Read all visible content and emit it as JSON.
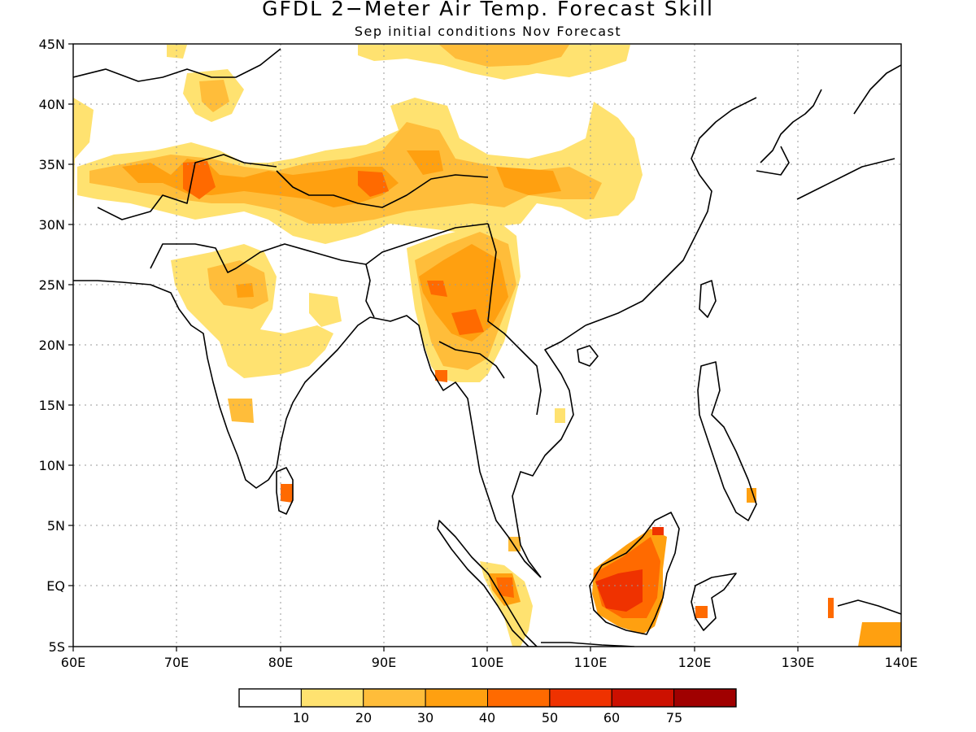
{
  "title": "GFDL 2−Meter Air Temp. Forecast Skill",
  "subtitle": "Sep initial conditions  Nov Forecast",
  "axes": {
    "lat_labels": [
      "45N",
      "40N",
      "35N",
      "30N",
      "25N",
      "20N",
      "15N",
      "10N",
      "5N",
      "EQ",
      "5S"
    ],
    "lon_labels": [
      "60E",
      "70E",
      "80E",
      "90E",
      "100E",
      "110E",
      "120E",
      "130E",
      "140E"
    ],
    "lat_range": [
      -5,
      45
    ],
    "lon_range": [
      60,
      140
    ],
    "grid": "dotted"
  },
  "colorbar": {
    "colors": [
      "#ffffff",
      "#ffe270",
      "#ffbd3a",
      "#ffa010",
      "#ff6a00",
      "#ef3200",
      "#cc1000",
      "#a00000"
    ],
    "labels": [
      "10",
      "20",
      "30",
      "40",
      "50",
      "60",
      "75"
    ]
  }
}
